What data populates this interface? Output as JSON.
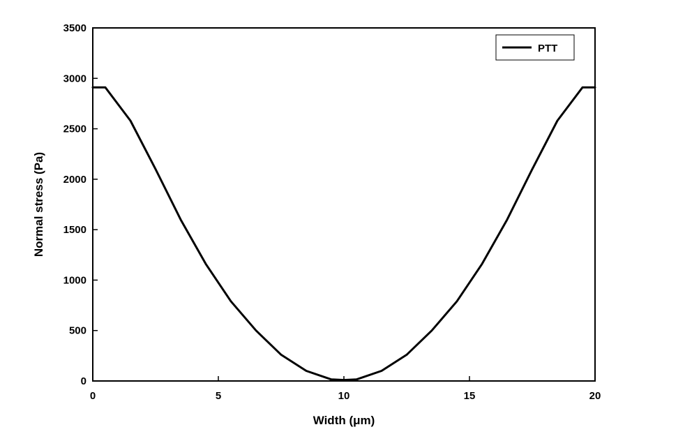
{
  "chart_data": {
    "type": "line",
    "xlabel": "Width (μm)",
    "ylabel": "Normal stress (Pa)",
    "xlim": [
      0,
      20
    ],
    "ylim": [
      0,
      3500
    ],
    "xticks": [
      "0",
      "5",
      "10",
      "15",
      "20"
    ],
    "yticks": [
      "0",
      "500",
      "1000",
      "1500",
      "2000",
      "2500",
      "3000",
      "3500"
    ],
    "grid": false,
    "legend": "top-right",
    "series": [
      {
        "name": "PTT",
        "color": "#000000",
        "x": [
          0,
          0.5,
          1.5,
          2.5,
          3.5,
          4.5,
          5.5,
          6.5,
          7.5,
          8.5,
          9.5,
          10,
          10.5,
          11.5,
          12.5,
          13.5,
          14.5,
          15.5,
          16.5,
          17.5,
          18.5,
          19.5,
          20
        ],
        "y": [
          2910,
          2910,
          2580,
          2100,
          1600,
          1160,
          790,
          500,
          260,
          100,
          15,
          10,
          15,
          100,
          260,
          500,
          790,
          1160,
          1600,
          2100,
          2580,
          2910,
          2910
        ]
      }
    ]
  }
}
